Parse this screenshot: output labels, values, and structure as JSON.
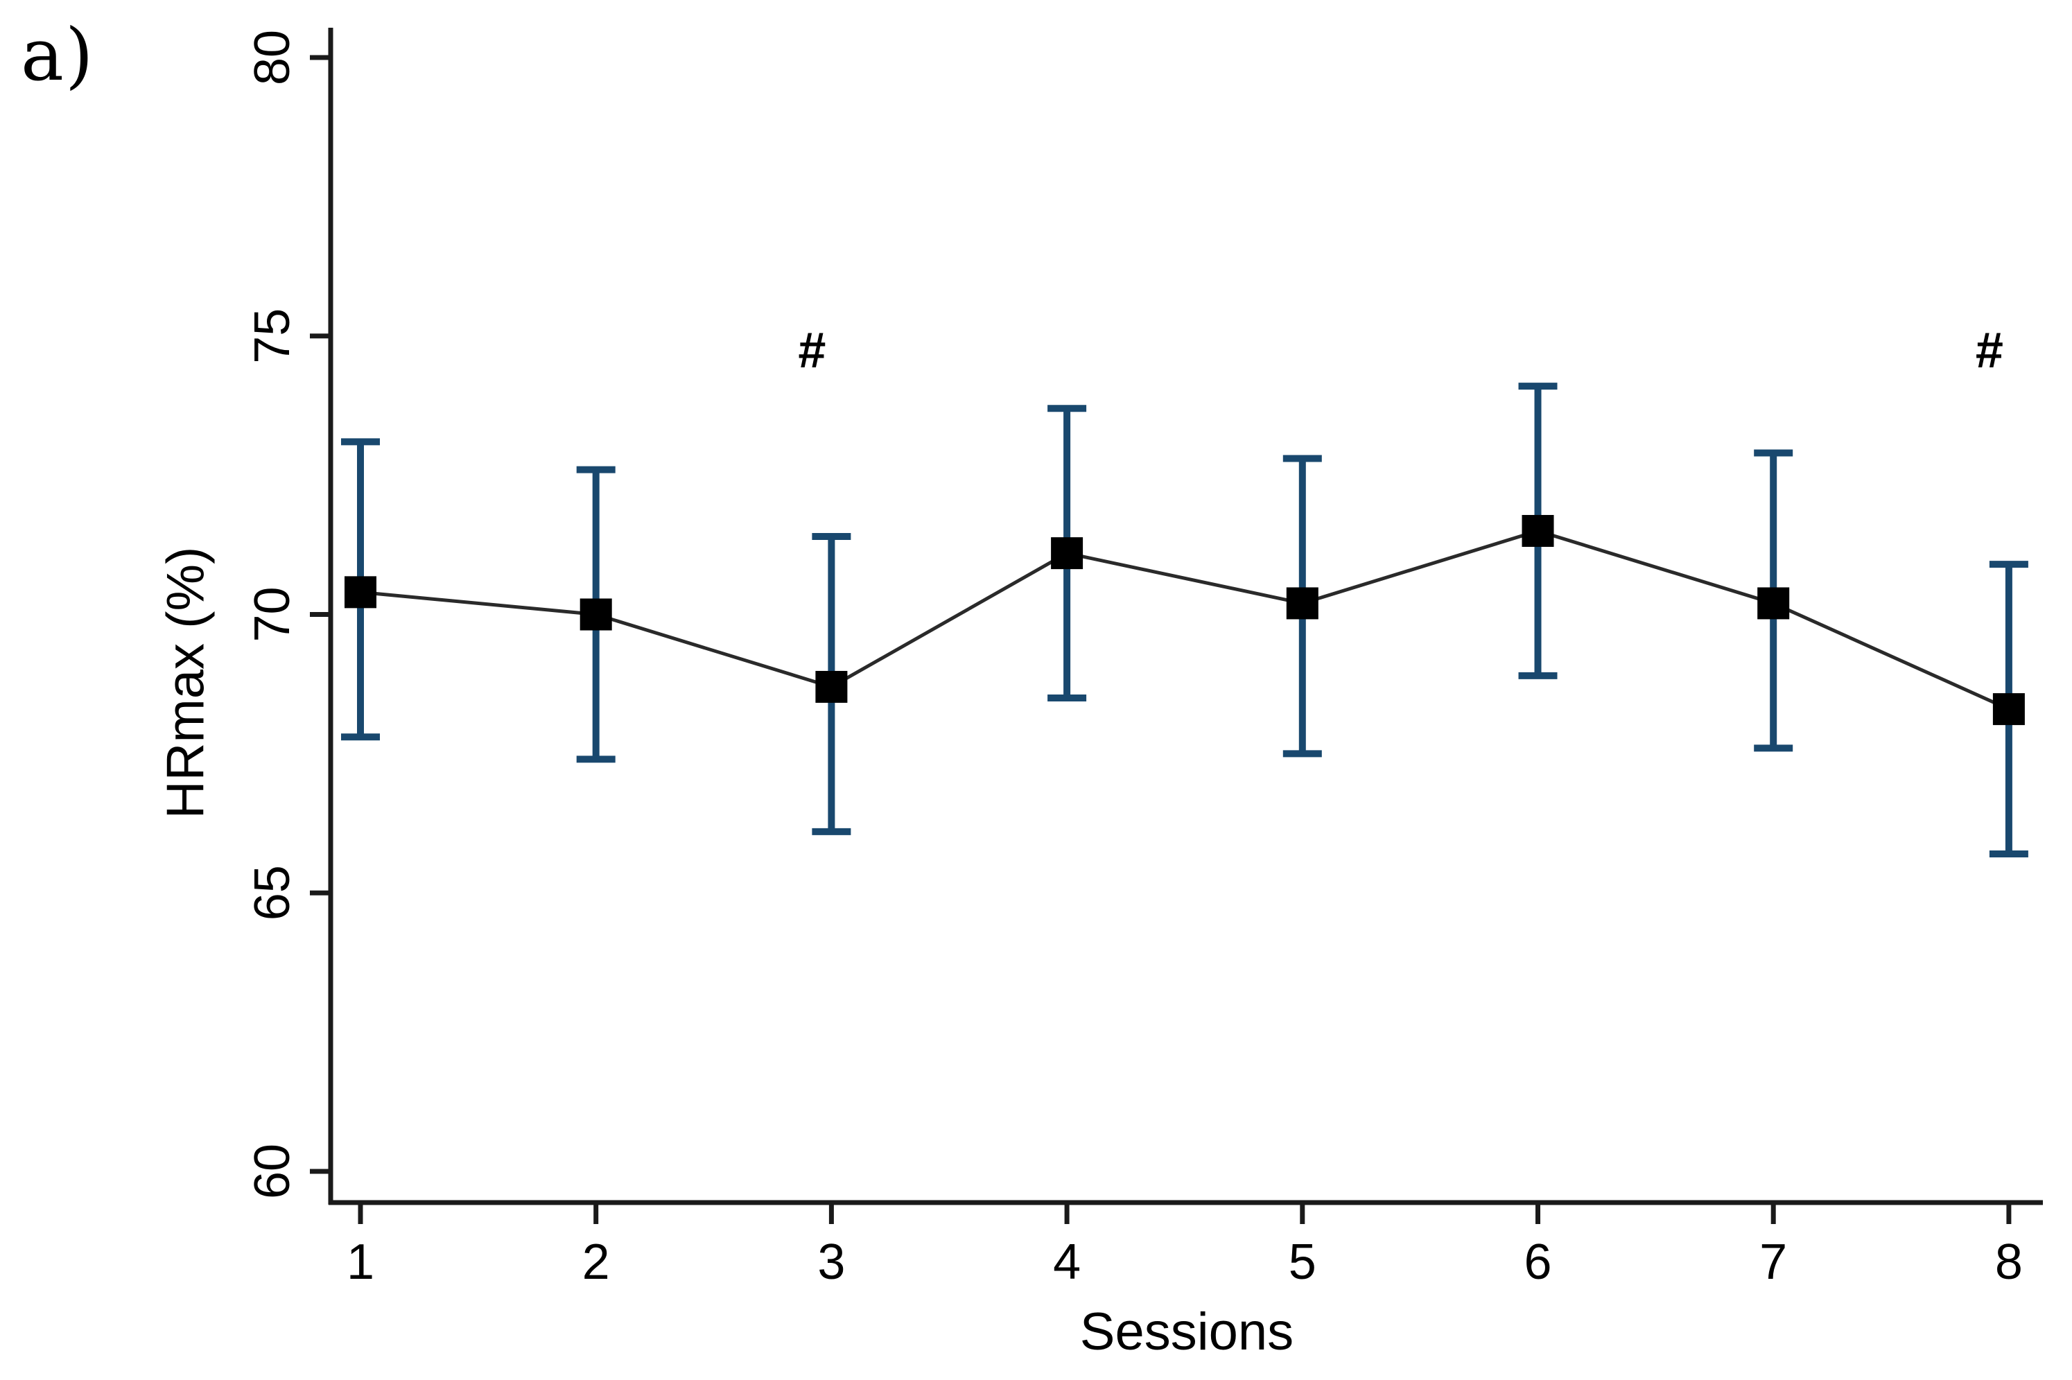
{
  "panel_label": "a)",
  "chart_data": {
    "type": "line",
    "title": "",
    "xlabel": "Sessions",
    "ylabel": "HRmax (%)",
    "categories": [
      1,
      2,
      3,
      4,
      5,
      6,
      7,
      8
    ],
    "series": [
      {
        "name": "HRmax",
        "values": [
          70.4,
          70.0,
          68.7,
          71.1,
          70.2,
          71.5,
          70.2,
          68.3
        ],
        "upper": [
          73.1,
          72.6,
          71.4,
          73.7,
          72.8,
          74.1,
          72.9,
          70.9
        ],
        "lower": [
          67.8,
          67.4,
          66.1,
          68.5,
          67.5,
          68.9,
          67.6,
          65.7
        ]
      }
    ],
    "error_bars": "sd",
    "yticks": [
      60,
      65,
      70,
      75,
      80
    ],
    "xticks": [
      1,
      2,
      3,
      4,
      5,
      6,
      7,
      8
    ],
    "ylim": [
      59.4,
      80.3
    ],
    "grid": false,
    "legend": "none",
    "annotations": [
      {
        "text": "#",
        "x": 3,
        "y": 74.75
      },
      {
        "text": "#",
        "x": 8,
        "y": 74.75
      }
    ],
    "colors": {
      "error_bar": "#19486e",
      "marker": "#000000",
      "line": "#2a2a2a",
      "axis": "#1a1a1a",
      "text": "#000000"
    }
  }
}
